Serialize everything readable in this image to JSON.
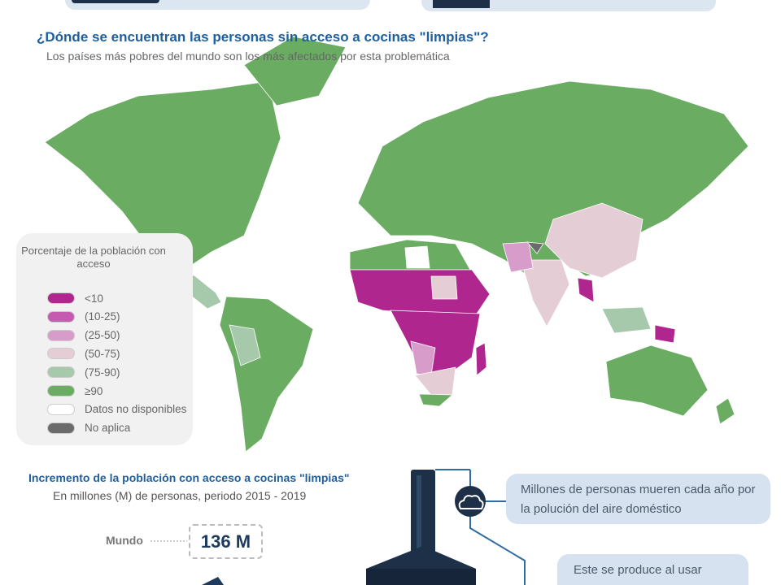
{
  "map": {
    "title": "¿Dónde se encuentran las personas sin acceso a cocinas \"limpias\"?",
    "subtitle": "Los países más pobres del mundo son los más afectados por esta problemática",
    "legend": {
      "title": "Porcentaje de la población con acceso",
      "items": [
        {
          "label": "<10",
          "color": "#b0268f"
        },
        {
          "label": "(10-25)",
          "color": "#c659b0"
        },
        {
          "label": "(25-50)",
          "color": "#d89ccb"
        },
        {
          "label": "(50-75)",
          "color": "#e5cdd6"
        },
        {
          "label": "(75-90)",
          "color": "#a6c8ab"
        },
        {
          "label": "≥90",
          "color": "#6aad62"
        },
        {
          "label": "Datos no disponibles",
          "color": "#ffffff"
        },
        {
          "label": "No aplica",
          "color": "#6b6b6b"
        }
      ]
    }
  },
  "increase": {
    "title": "Incremento de la población con acceso a cocinas \"limpias\"",
    "subtitle": "En millones (M) de personas, periodo 2015 - 2019",
    "region": "Mundo",
    "value": "136 M"
  },
  "notes": [
    "Millones de personas mueren cada año por la polución del aire doméstico",
    "Este se produce al usar"
  ]
}
